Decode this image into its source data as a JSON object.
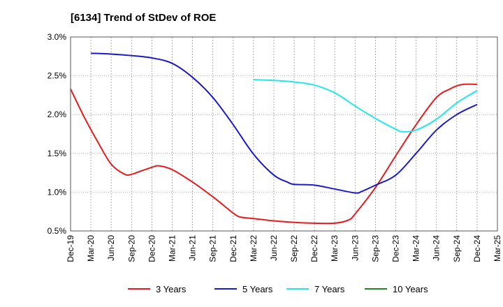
{
  "chart_data": {
    "type": "line",
    "title": "[6134]  Trend of StDev of ROE",
    "xlabel": "",
    "ylabel": "",
    "x_ticks": [
      "Dec-19",
      "Mar-20",
      "Jun-20",
      "Sep-20",
      "Dec-20",
      "Mar-21",
      "Jun-21",
      "Sep-21",
      "Dec-21",
      "Mar-22",
      "Jun-22",
      "Sep-22",
      "Dec-22",
      "Mar-23",
      "Jun-23",
      "Sep-23",
      "Dec-23",
      "Mar-24",
      "Jun-24",
      "Sep-24",
      "Dec-24",
      "Mar-25"
    ],
    "y_ticks": [
      "0.5%",
      "1.0%",
      "1.5%",
      "2.0%",
      "2.5%",
      "3.0%"
    ],
    "ylim": [
      0.5,
      3.0
    ],
    "y_unit": "%",
    "grid": "vertical-dashed, horizontal-dotted",
    "legend_position": "bottom",
    "series": [
      {
        "name": "3 Years",
        "color": "#e8191d",
        "x": [
          "Dec-19",
          "Feb-20",
          "Apr-20",
          "Jun-20",
          "Aug-20",
          "Sep-20",
          "Oct-20",
          "Dec-20",
          "Jan-21",
          "Mar-21",
          "Jun-21",
          "Sep-21",
          "Nov-21",
          "Dec-21",
          "Jan-22",
          "Mar-22",
          "Jun-22",
          "Sep-22",
          "Dec-22",
          "Mar-23",
          "May-23",
          "Jun-23",
          "Sep-23",
          "Dec-23",
          "Mar-24",
          "Jun-24",
          "Aug-24",
          "Sep-24",
          "Oct-24",
          "Dec-24"
        ],
        "values": [
          2.33,
          1.97,
          1.65,
          1.36,
          1.23,
          1.23,
          1.26,
          1.32,
          1.34,
          1.29,
          1.13,
          0.94,
          0.8,
          0.73,
          0.68,
          0.66,
          0.63,
          0.61,
          0.6,
          0.6,
          0.64,
          0.72,
          1.06,
          1.47,
          1.87,
          2.22,
          2.33,
          2.37,
          2.39,
          2.39
        ]
      },
      {
        "name": "5 Years",
        "color": "#1a1acd",
        "x": [
          "Mar-20",
          "Jun-20",
          "Sep-20",
          "Dec-20",
          "Mar-21",
          "Jun-21",
          "Sep-21",
          "Dec-21",
          "Mar-22",
          "Jun-22",
          "Aug-22",
          "Sep-22",
          "Dec-22",
          "Mar-23",
          "Jun-23",
          "Jul-23",
          "Sep-23",
          "Dec-23",
          "Mar-24",
          "Jun-24",
          "Sep-24",
          "Dec-24"
        ],
        "values": [
          2.79,
          2.78,
          2.76,
          2.73,
          2.66,
          2.48,
          2.22,
          1.87,
          1.49,
          1.22,
          1.13,
          1.1,
          1.09,
          1.04,
          0.99,
          1.01,
          1.09,
          1.22,
          1.5,
          1.8,
          2.0,
          2.13
        ]
      },
      {
        "name": "7 Years",
        "color": "#22e8ea",
        "x": [
          "Mar-22",
          "Jun-22",
          "Sep-22",
          "Dec-22",
          "Mar-23",
          "Jun-23",
          "Sep-23",
          "Dec-23",
          "Jan-24",
          "Mar-24",
          "Jun-24",
          "Sep-24",
          "Dec-24"
        ],
        "values": [
          2.45,
          2.44,
          2.42,
          2.38,
          2.28,
          2.11,
          1.95,
          1.81,
          1.78,
          1.8,
          1.94,
          2.15,
          2.31
        ]
      },
      {
        "name": "10 Years",
        "color": "#1e8a1e",
        "x": [],
        "values": []
      }
    ]
  }
}
